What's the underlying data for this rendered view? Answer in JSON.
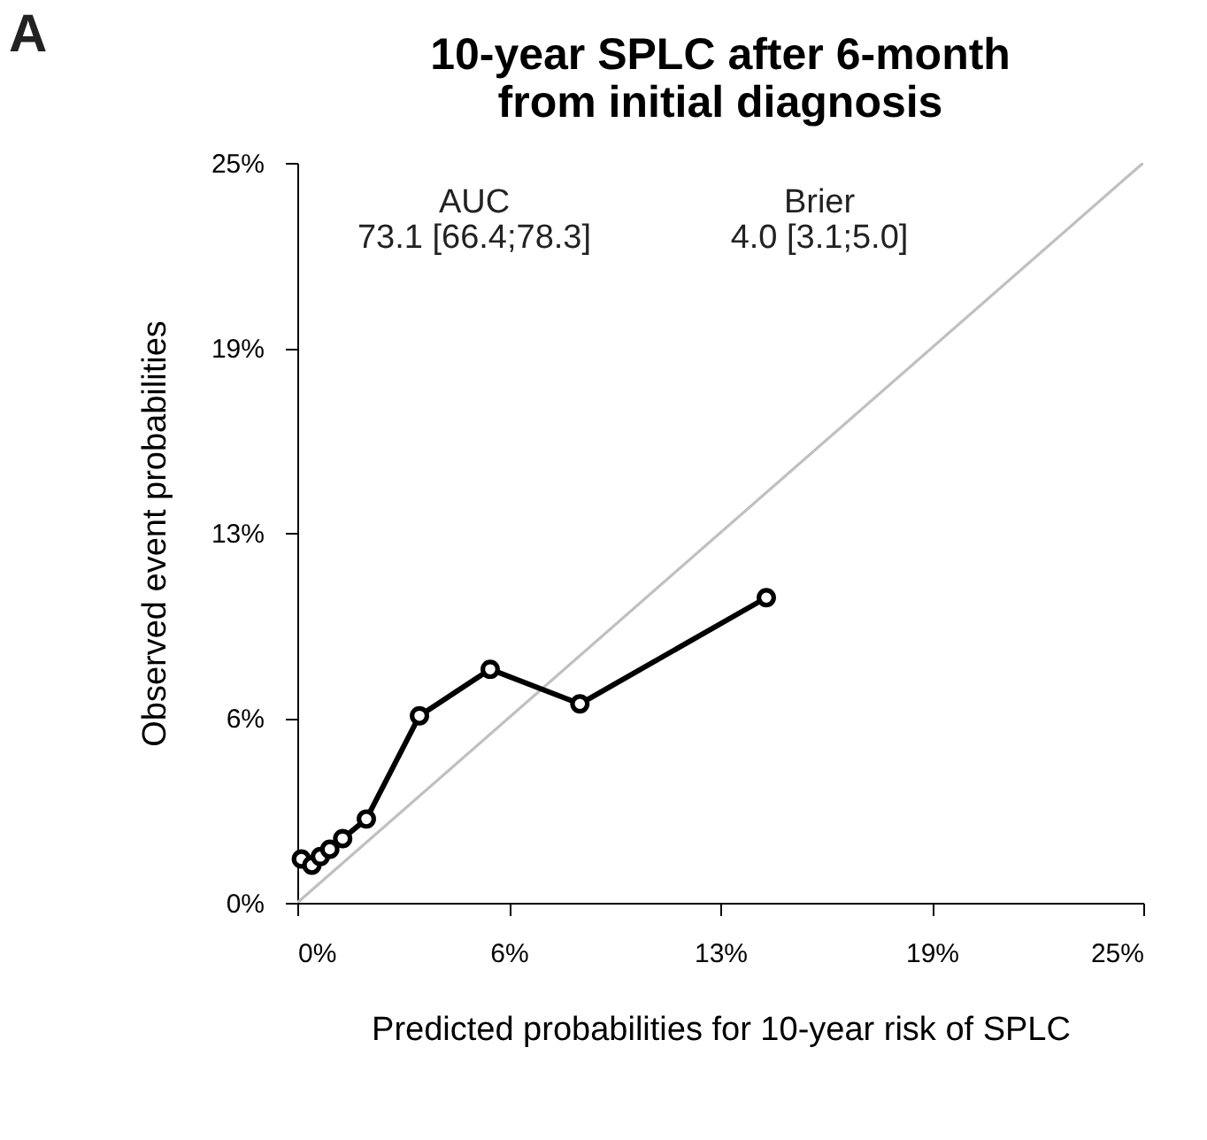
{
  "chart_data": {
    "type": "line",
    "title": [
      "10-year SPLC after 6-month",
      "from initial diagnosis"
    ],
    "xlabel": "Predicted probabilities for 10-year risk of SPLC",
    "ylabel": "Observed event probabilities",
    "annotations": [
      "A",
      "AUC",
      "73.1 [66.4;78.3]",
      "Brier",
      "4.0 [3.1;5.0]"
    ],
    "xlim": [
      0,
      25
    ],
    "ylim": [
      0,
      25
    ],
    "xticks": [
      {
        "value": 0,
        "label": "0%"
      },
      {
        "value": 6.25,
        "label": "6%"
      },
      {
        "value": 12.5,
        "label": "13%"
      },
      {
        "value": 18.75,
        "label": "19%"
      },
      {
        "value": 25,
        "label": "25%"
      }
    ],
    "yticks": [
      {
        "value": 0,
        "label": "0%"
      },
      {
        "value": 6.25,
        "label": "6%"
      },
      {
        "value": 12.5,
        "label": "13%"
      },
      {
        "value": 18.75,
        "label": "19%"
      },
      {
        "value": 25,
        "label": "25%"
      }
    ],
    "grid": false,
    "series": [
      {
        "color": "#c0c0c0",
        "marker": "none",
        "x": [
          0,
          25
        ],
        "values": [
          0,
          25
        ]
      },
      {
        "color": "#000000",
        "marker": "circle",
        "x": [
          0.12,
          0.43,
          0.68,
          0.96,
          1.34,
          2.04,
          3.61,
          5.7,
          8.35,
          13.86
        ],
        "values": [
          1.48,
          1.27,
          1.56,
          1.81,
          2.17,
          2.83,
          6.32,
          7.89,
          6.72,
          10.31
        ]
      }
    ]
  }
}
